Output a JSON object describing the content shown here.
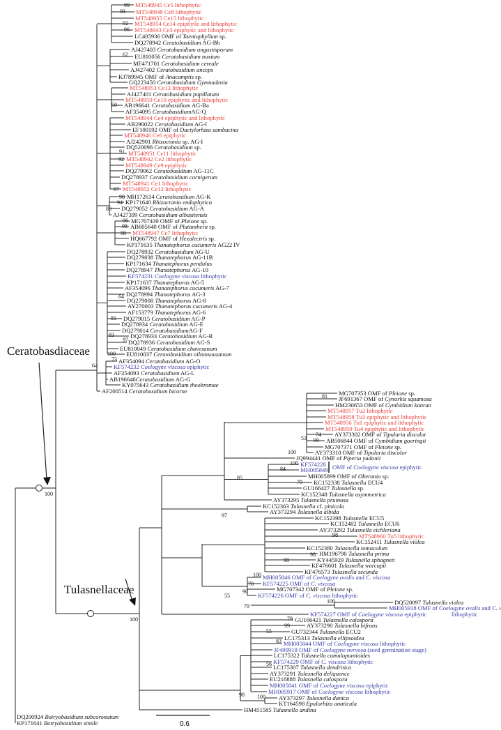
{
  "families": {
    "ceratobasidiaceae": "Ceratobasdiaceae",
    "tulasnellaceae": "Tulasnellaceae"
  },
  "root_support": [
    "100",
    "100"
  ],
  "scale": "0.6",
  "colors": {
    "lithophytic_epiphytic_isolates": "#e8403a",
    "coelogyne_reference": "#3a3aa8",
    "default": "#111111"
  },
  "leaves": [
    {
      "a": "MT548945 Ce5 lithophytic",
      "c": "red"
    },
    {
      "a": "MT548948 Ce8 lithophytic",
      "c": "red"
    },
    {
      "a": "MT548955 Ce15 lithophytic",
      "c": "red"
    },
    {
      "a": "MT548954 Ce14 epiphytic and lithophytic",
      "c": "red"
    },
    {
      "a": "MT548943 Ce3 epiphytic and lithophytic",
      "c": "red"
    },
    {
      "a": "LC405936 OMF of ",
      "i": "Taeniophyllum",
      "s": " sp."
    },
    {
      "a": "DQ278942 ",
      "i": "Ceratobasidium",
      "s": " AG-Bb"
    },
    {
      "a": "AJ427403 ",
      "i": "Ceratobasidium angustisporum"
    },
    {
      "a": "EU810056 ",
      "i": "Ceratobasidium noxium"
    },
    {
      "a": "MF471701 ",
      "i": "Ceratobasidium cereale"
    },
    {
      "a": "AJ427402 ",
      "i": "Ceratobasidium anceps"
    },
    {
      "a": "KJ789945 OMF of ",
      "i": "Anacamptis",
      "s": " sp."
    },
    {
      "a": "GQ223450 ",
      "i": "Ceratobasidium Gymnadenia"
    },
    {
      "a": "MT548953 Ce13 lithophytic",
      "c": "red"
    },
    {
      "a": "AJ427401 ",
      "i": "Ceratobasidium papillatum"
    },
    {
      "a": "MT548950 Ce10 epiphytic and lithophytic",
      "c": "red"
    },
    {
      "a": "AB196641 ",
      "i": "Ceratobasidium",
      "s": " AG-Ba"
    },
    {
      "a": "AF354095 ",
      "i": "Ceratobasidium",
      "s": "AG-Q"
    },
    {
      "a": "MT548944 Ce4 epiphytic and lithophytic",
      "c": "red"
    },
    {
      "a": "AB290022 ",
      "i": "Ceratobasidium",
      "s": " AG-I"
    },
    {
      "a": "EF100192 OMF of ",
      "i": "Dactylorhiza sambucina"
    },
    {
      "a": "MT548946 Ce6 epiphytic",
      "c": "red"
    },
    {
      "a": "AJ242901 ",
      "i": "Rhizoctonia",
      "s": " sp. AG-I"
    },
    {
      "a": "DQ520098 ",
      "i": "Ceratobasidium",
      "s": " sp."
    },
    {
      "a": "MT548951 Ce11 lithophytic",
      "c": "red"
    },
    {
      "a": "MT548942 Ce2 lithophytic",
      "c": "red"
    },
    {
      "a": "MT548949 Ce9 epiphytic",
      "c": "red"
    },
    {
      "a": "DQ279062 ",
      "i": "Ceratobasidium",
      "s": "  AG-11C"
    },
    {
      "a": "DQ278937 ",
      "i": "Ceratobasidium cornigerum"
    },
    {
      "a": "MT548941 Ce1 lithophytic",
      "c": "red"
    },
    {
      "a": "MT548952 Ce12 lithophytic",
      "c": "red"
    },
    {
      "a": "MH172614 ",
      "i": "Ceratobasidium",
      "s": " AG-K"
    },
    {
      "a": "KP171640 ",
      "i": "Rhizoctonia endophytica"
    },
    {
      "a": "DQ279052 ",
      "i": "Ceratobasidium",
      "s": " AG-A"
    },
    {
      "a": "AJ427399 ",
      "i": "Ceratobasidium albasitensis"
    },
    {
      "a": "MG707439 OMF of ",
      "i": "Pleione",
      "s": " sp."
    },
    {
      "a": "AB605640 OMF of ",
      "i": "Platanthera",
      "s": " sp."
    },
    {
      "a": "MT548947 Ce7 lithophytic",
      "c": "red"
    },
    {
      "a": "HQ667792  OMF of ",
      "i": "Hexalectris",
      "s": " sp."
    },
    {
      "a": "KP171635 ",
      "i": "Thanatephorus cucumeris",
      "s": " AG22 IV"
    },
    {
      "a": "DQ278932 ",
      "i": "Ceratobasidium",
      "s": " AG-U"
    },
    {
      "a": "DQ279038 ",
      "i": "Thanatephorus",
      "s": " AG-11B"
    },
    {
      "a": "KP171634 ",
      "i": "Thanatephorus pendulus"
    },
    {
      "a": "DQ278947 ",
      "i": "Thanatephorus",
      "s": " AG-10"
    },
    {
      "a": "KF574231 ",
      "i": "Coelogyne viscosa",
      "s": " lithophytic",
      "c": "blue"
    },
    {
      "a": "KP171637 ",
      "i": "Thanatephorus",
      "s": " AG-5"
    },
    {
      "a": "AF354096 ",
      "i": "Thanatephorus cucumeris",
      "s": " AG-7"
    },
    {
      "a": "DQ278994 ",
      "i": "Thanatephorus",
      "s": " AG-3"
    },
    {
      "a": "DQ279008 ",
      "i": "Thanatephorus",
      "s": " AG-8"
    },
    {
      "a": "AY270003 ",
      "i": "Thanatephorus cucumeris",
      "s": " AG-4"
    },
    {
      "a": "AF153779 ",
      "i": "Thanatephorus",
      "s": " AG-6"
    },
    {
      "a": "DQ279015 ",
      "i": "Ceratobasidium",
      "s": " AG-P"
    },
    {
      "a": "DQ278934 ",
      "i": "Ceratobasidium",
      "s": " AG-E"
    },
    {
      "a": "DQ279014 ",
      "i": "Ceratobasidium",
      "s": "AG-F"
    },
    {
      "a": "DQ278933 ",
      "i": "Ceratobasidium",
      "s": " AG-R"
    },
    {
      "a": "DQ278936 ",
      "i": "Ceratobasidium",
      "s": " AG-S"
    },
    {
      "a": "EU810049 ",
      "i": "Ceratobasidium chavesanum"
    },
    {
      "a": "EU810037 ",
      "i": "Ceratobasidium niltonsouzanum"
    },
    {
      "a": "AF354094 ",
      "i": "Ceratobasidium",
      "s": " AG-O"
    },
    {
      "a": "KF574232 ",
      "i": "Coelogyne viscosa",
      "s": " epiphytic",
      "c": "blue"
    },
    {
      "a": "AF354093 ",
      "i": "Ceratobasidium",
      "s": " AG-L"
    },
    {
      "a": "AB196646",
      "i": "Ceratobasidium",
      "s": " AG-G"
    },
    {
      "a": "KY075643 ",
      "i": "Ceratobasidium theobromae"
    },
    {
      "a": "AF200514 ",
      "i": "Ceratobasidium bicorne"
    },
    {
      "a": "MG707353 OMF of ",
      "i": "Pleione",
      "s": " sp."
    },
    {
      "a": "JF691367 OMF of ",
      "i": "Cynorkis squamosa"
    },
    {
      "a": "HM230653 OMF of ",
      "i": "Cymbidium kanran"
    },
    {
      "a": "MT548957 Tu2 lithophytic",
      "c": "red"
    },
    {
      "a": "MT548958 Tu3 epiphytic and lithophytic",
      "c": "red"
    },
    {
      "a": "MT548956 Tu1 epiphytic and lithophytic",
      "c": "red"
    },
    {
      "a": "MT548959 Tu4 epiphytic and lithophytic",
      "c": "red"
    },
    {
      "a": "AY373302 OMF of ",
      "i": "Tipularia discolor"
    },
    {
      "a": "AB506844 OMF of ",
      "i": "Cymbidium goeringii"
    },
    {
      "a": "MG707371 OMF of ",
      "i": "Pleione",
      "s": " sp."
    },
    {
      "a": "AY373310 OMF of ",
      "i": "Tipularia discolor"
    },
    {
      "a": "JQ994441 OMF of ",
      "i": "Piperia yadonii"
    },
    {
      "a": "KF574228",
      "c": "blue"
    },
    {
      "a": "MH005849",
      "c": "blue"
    },
    {
      "a": "MH005899 OMF of ",
      "i": "Oberonia",
      "s": " sp."
    },
    {
      "a": "KC152338 ",
      "i": "Tulasnella",
      "s": " ECU4"
    },
    {
      "a": "GU166427 ",
      "i": "Tulasnella",
      "s": " sp."
    },
    {
      "a": "KC152348 ",
      "i": "Tulasnella asymmetrica"
    },
    {
      "a": "AY373295 ",
      "i": "Tulasnella pruinosa"
    },
    {
      "a": "KC152363 ",
      "i": "Tulasnella",
      "s": " cf. ",
      "i2": "pinicola"
    },
    {
      "a": "AY373294 ",
      "i": "Tulasnella albida"
    },
    {
      "a": "KC152398 ",
      "i": "Tulasnella",
      "s": " ECU5"
    },
    {
      "a": "KC152402 ",
      "i": "Tulasnella",
      "s": " ECU6"
    },
    {
      "a": "AY373292 ",
      "i": "Tulasnella eichleriana"
    },
    {
      "a": "MT548960 Tu5 lithophytic",
      "c": "red"
    },
    {
      "a": "KC152411 ",
      "i": "Tulasnella violea"
    },
    {
      "a": "KC152380 ",
      "i": "Tulasnella tomaculum"
    },
    {
      "a": "HM196790 ",
      "i": "Tulasnella prima"
    },
    {
      "a": "KY445929 ",
      "i": "Tulasnella sphagneti"
    },
    {
      "a": "KF476601 ",
      "i": "Tulasnella warcupii"
    },
    {
      "a": "KF476573 ",
      "i": "Tulasnella secunda"
    },
    {
      "a": "MH005846 OMF of ",
      "i": "Coelogyne ovalis",
      "s": " and ",
      "i2": "C. viscosa",
      "c": "blue"
    },
    {
      "a": "KF574225 OMF of ",
      "i": "C. viscosa",
      "c": "blue"
    },
    {
      "a": "MG707342 OMF of ",
      "i": "Pleione",
      "s": " sp."
    },
    {
      "a": "KF574226 OMF of ",
      "i": "C. viscosa",
      "s": " lithophytic",
      "c": "blue"
    },
    {
      "a": "DQ520097 ",
      "i": "Tulasnella violea"
    },
    {
      "a": "MH005918 OMF of ",
      "i": "Coelogyne ovalis",
      "s": " and ",
      "i2": "C. viscosa",
      "c": "blue"
    },
    {
      "a": "KF574227 OMF of ",
      "i": "Coelogyne viscosa",
      "s": " epiphytic",
      "c": "blue"
    },
    {
      "a": "GU166421 ",
      "i": "Tulasnella calospora"
    },
    {
      "a": "AY373290 ",
      "i": "Tulasnella bifrons"
    },
    {
      "a": "GU732344 ",
      "i": "Tulasnella",
      "s": " ECU2"
    },
    {
      "a": "LC175313 ",
      "i": "Tulasnella ellipsoidea"
    },
    {
      "a": "MH005844 OMF of ",
      "i": "Coelogyne viscosa",
      "s": " lithophytic",
      "c": "blue"
    },
    {
      "a": "JF499918 OMF of ",
      "i": "Coelogyne nervosa",
      "s": " (seed germination stage)",
      "c": "blue"
    },
    {
      "a": "LC175322 ",
      "i": "Tulasnella cumulopuntioides"
    },
    {
      "a": "KF574229 OMF of ",
      "i": "C.  viscosa",
      "s": " lithophytic",
      "c": "blue"
    },
    {
      "a": "LC175307 ",
      "i": "Tulasnella dendritica"
    },
    {
      "a": "AY373291 ",
      "i": "Tulasnella deliquence"
    },
    {
      "a": "EU218888 ",
      "i": "Tulasnella calospora"
    },
    {
      "a": "MH005841 OMF of ",
      "i": "Coelogyne viscosa",
      "s": " epiphytic",
      "c": "blue"
    },
    {
      "a": "MH005917 OMF of ",
      "i": "Coelogyne viscosa",
      "s": " lithophytic",
      "c": "blue"
    },
    {
      "a": "AY373297 ",
      "i": "Tulasnella danica"
    },
    {
      "a": "KT164598 ",
      "i": "Epulorhiza anaticula"
    },
    {
      "a": "HM451585 ",
      "i": "Tulasnella andina"
    },
    {
      "a": "DQ200924 ",
      "i": "Botryobasidium subcoronatum"
    },
    {
      "a": "KP171641 ",
      "i": "Botryobasidium simile"
    }
  ],
  "bracket_label": {
    "a": "OMF of ",
    "i": "Coelogyne viscosa",
    "s": " epiphytic"
  },
  "mh005918_continuation": "lithophytic",
  "bootstrap": [
    "99",
    "93",
    "92",
    "96",
    "62",
    "50",
    "91",
    "92",
    "97",
    "98",
    "94",
    "80",
    "96",
    "98",
    "98",
    "64",
    "81",
    "83",
    "97",
    "100",
    "73",
    "64",
    "81",
    "53",
    "74",
    "90",
    "100",
    "100",
    "84",
    "85",
    "79",
    "97",
    "98",
    "98",
    "98",
    "100",
    "70",
    "90",
    "55",
    "100",
    "79",
    "79",
    "99",
    "55",
    "83",
    "56",
    "100",
    "98"
  ]
}
